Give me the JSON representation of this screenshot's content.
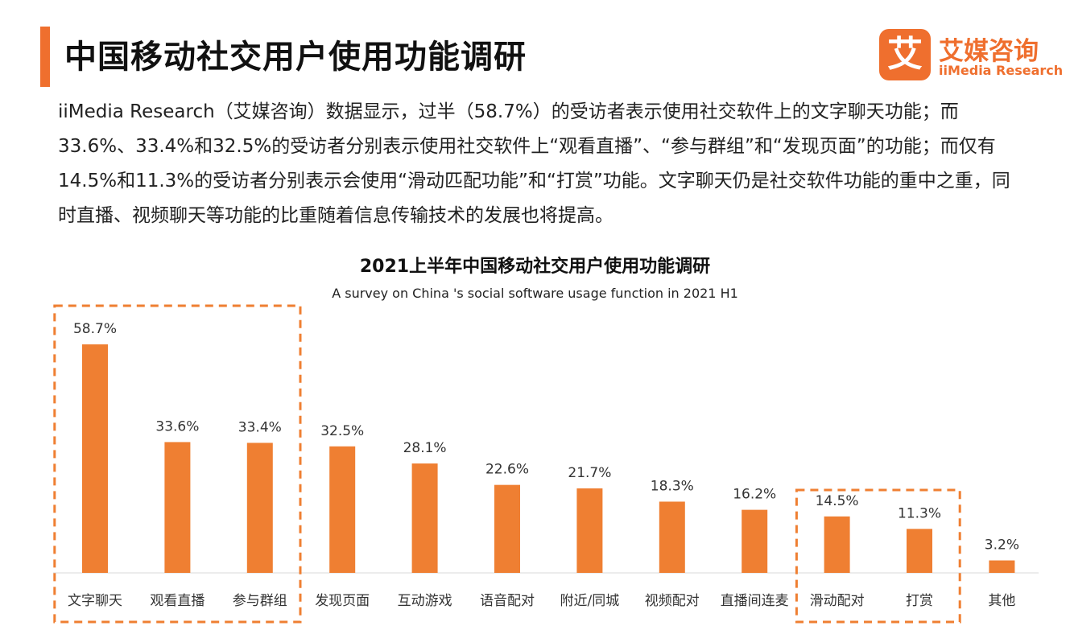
{
  "header": {
    "title": "中国移动社交用户使用功能调研",
    "accent_color": "#ef6f2e"
  },
  "logo": {
    "mark": "艾",
    "name_cn": "艾媒咨询",
    "name_en": "iiMedia Research",
    "color": "#ef6f2e"
  },
  "description": "iiMedia Research（艾媒咨询）数据显示，过半（58.7%）的受访者表示使用社交软件上的文字聊天功能；而33.6%、33.4%和32.5%的受访者分别表示使用社交软件上“观看直播”、“参与群组”和“发现页面”的功能；而仅有14.5%和11.3%的受访者分别表示会使用“滑动匹配功能”和“打赏”功能。文字聊天仍是社交软件功能的重中之重，同时直播、视频聊天等功能的比重随着信息传输技术的发展也将提高。",
  "chart_data": {
    "type": "bar",
    "title": "2021上半年中国移动社交用户使用功能调研",
    "subtitle": "A survey on China 's social software usage function in 2021 H1",
    "categories": [
      "文字聊天",
      "观看直播",
      "参与群组",
      "发现页面",
      "互动游戏",
      "语音配对",
      "附近/同城",
      "视频配对",
      "直播间连麦",
      "滑动配对",
      "打赏",
      "其他"
    ],
    "values": [
      58.7,
      33.6,
      33.4,
      32.5,
      28.1,
      22.6,
      21.7,
      18.3,
      16.2,
      14.5,
      11.3,
      3.2
    ],
    "value_labels": [
      "58.7%",
      "33.6%",
      "33.4%",
      "32.5%",
      "28.1%",
      "22.6%",
      "21.7%",
      "18.3%",
      "16.2%",
      "14.5%",
      "11.3%",
      "3.2%"
    ],
    "unit": "%",
    "ylim": [
      0,
      60
    ],
    "grid": false,
    "bar_color": "#ef7f32",
    "highlight_groups": [
      {
        "from": 0,
        "to": 2,
        "color": "#ef7f32"
      },
      {
        "from": 9,
        "to": 10,
        "color": "#ef7f32"
      }
    ]
  }
}
